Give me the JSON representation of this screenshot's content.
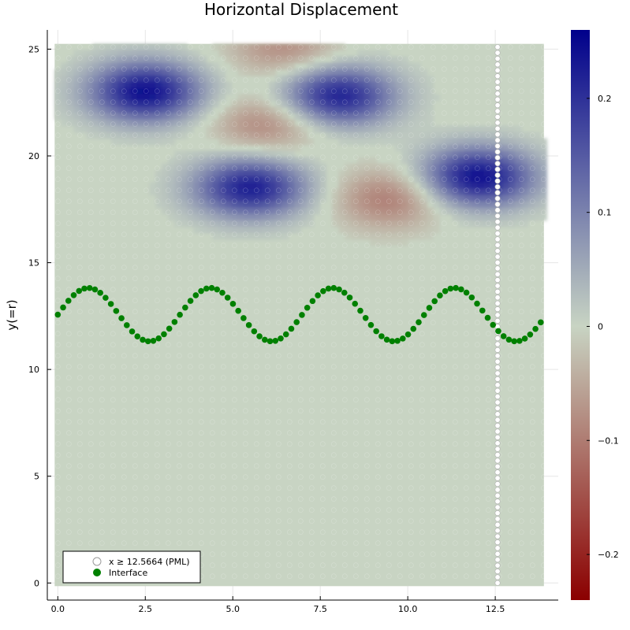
{
  "chart_data": {
    "type": "scatter",
    "title": "Horizontal Displacement",
    "xlabel": "",
    "ylabel": "y(=r)",
    "xlim": [
      -0.3,
      14.3
    ],
    "ylim": [
      -0.8,
      25.9
    ],
    "xticks": [
      {
        "v": 0,
        "label": "0.0"
      },
      {
        "v": 2.5,
        "label": "2.5"
      },
      {
        "v": 5,
        "label": "5.0"
      },
      {
        "v": 7.5,
        "label": "7.5"
      },
      {
        "v": 10,
        "label": "10.0"
      },
      {
        "v": 12.5,
        "label": "12.5"
      }
    ],
    "yticks": [
      {
        "v": 0,
        "label": "0"
      },
      {
        "v": 5,
        "label": "5"
      },
      {
        "v": 10,
        "label": "10"
      },
      {
        "v": 15,
        "label": "15"
      },
      {
        "v": 20,
        "label": "20"
      },
      {
        "v": 25,
        "label": "25"
      }
    ],
    "colorbar": {
      "min": -0.24,
      "max": 0.26,
      "colors": [
        "#8b0000",
        "#c8d4c3",
        "#00008b"
      ],
      "ticks": [
        {
          "v": 0.2,
          "label": "0.2"
        },
        {
          "v": 0.1,
          "label": "0.1"
        },
        {
          "v": 0,
          "label": "0"
        },
        {
          "v": -0.1,
          "label": "−0.1"
        },
        {
          "v": -0.2,
          "label": "−0.2"
        }
      ]
    },
    "field": {
      "x_range": [
        0,
        13.8
      ],
      "y_range": [
        0,
        25.1
      ],
      "background_value": 0,
      "blobs": [
        {
          "x": 2.5,
          "y": 23.0,
          "value": 0.24
        },
        {
          "x": 5.5,
          "y": 18.5,
          "value": 0.22
        },
        {
          "x": 8.0,
          "y": 22.8,
          "value": 0.22
        },
        {
          "x": 12.0,
          "y": 19.0,
          "value": 0.24
        },
        {
          "x": 6.0,
          "y": 21.5,
          "value": -0.09
        },
        {
          "x": 6.5,
          "y": 25.0,
          "value": -0.08
        },
        {
          "x": 9.5,
          "y": 18.0,
          "value": -0.1
        }
      ]
    },
    "series": [
      {
        "name": "x ≥ 12.5664 (PML)",
        "marker": "white-circle",
        "x_const": 12.5664,
        "y_range": [
          0,
          25.1
        ],
        "count": 93
      },
      {
        "name": "Interface",
        "marker": "green-circle",
        "color": "#008000",
        "function": "y = 12.566 + 1.25*sin(1.8*x)",
        "x_range": [
          0,
          13.8
        ],
        "count": 92
      }
    ],
    "legend": "bottom-left"
  }
}
